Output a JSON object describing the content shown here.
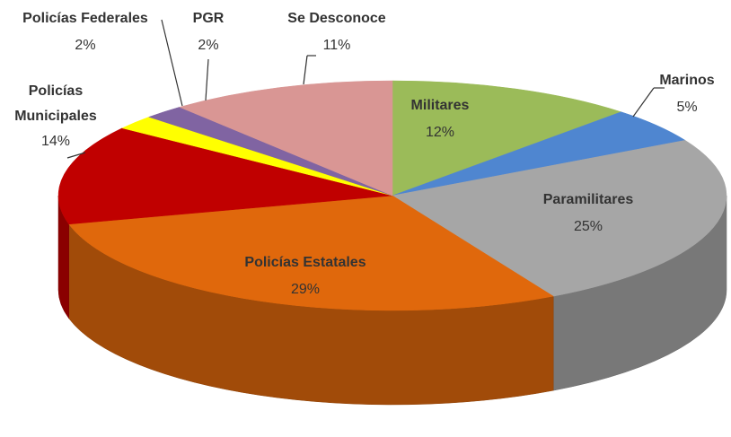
{
  "chart_data": {
    "type": "pie",
    "categories": [
      "Militares",
      "Marinos",
      "Paramilitares",
      "Policías Estatales",
      "Policías Municipales",
      "Policías Federales",
      "PGR",
      "Se Desconoce"
    ],
    "values": [
      12,
      5,
      25,
      29,
      14,
      2,
      2,
      11
    ],
    "value_labels": [
      "12%",
      "5%",
      "25%",
      "29%",
      "14%",
      "2%",
      "2%",
      "11%"
    ],
    "colors": [
      "#9bbb59",
      "#4f86d0",
      "#a6a6a6",
      "#e0680c",
      "#c00000",
      "#ffff00",
      "#8064a2",
      "#d99694"
    ]
  }
}
